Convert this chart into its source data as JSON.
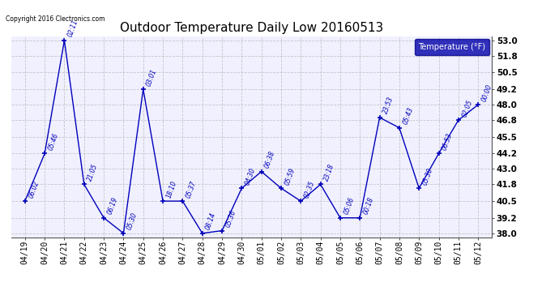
{
  "title": "Outdoor Temperature Daily Low 20160513",
  "copyright": "Copyright 2016 Clectronics.com",
  "legend_label": "Temperature (°F)",
  "dates": [
    "04/19",
    "04/20",
    "04/21",
    "04/22",
    "04/23",
    "04/24",
    "04/25",
    "04/26",
    "04/27",
    "04/28",
    "04/29",
    "04/30",
    "05/01",
    "05/02",
    "05/03",
    "05/04",
    "05/05",
    "05/06",
    "05/07",
    "05/08",
    "05/09",
    "05/10",
    "05/11",
    "05/12"
  ],
  "temperatures": [
    40.5,
    44.2,
    53.0,
    41.8,
    39.2,
    38.0,
    49.2,
    40.5,
    40.5,
    38.0,
    38.2,
    41.5,
    42.8,
    41.5,
    40.5,
    41.8,
    39.2,
    39.2,
    47.0,
    46.2,
    41.5,
    44.2,
    46.8,
    48.0
  ],
  "time_labels": [
    "06:02",
    "05:46",
    "02:11",
    "21:05",
    "06:19",
    "05:30",
    "03:01",
    "18:10",
    "05:37",
    "08:14",
    "05:36",
    "04:30",
    "06:38",
    "05:59",
    "02:35",
    "23:18",
    "05:06",
    "00:18",
    "23:53",
    "05:43",
    "05:30",
    "06:53",
    "02:05",
    "00:00"
  ],
  "ylim": [
    37.7,
    53.3
  ],
  "yticks": [
    38.0,
    39.2,
    40.5,
    41.8,
    43.0,
    44.2,
    45.5,
    46.8,
    48.0,
    49.2,
    50.5,
    51.8,
    53.0
  ],
  "line_color": "#0000bb",
  "bg_color": "#ffffff",
  "plot_bg_color": "#f0f0ff",
  "grid_color": "#bbbbbb",
  "title_color": "#000000",
  "legend_bg": "#0000aa",
  "legend_text": "#ffffff"
}
